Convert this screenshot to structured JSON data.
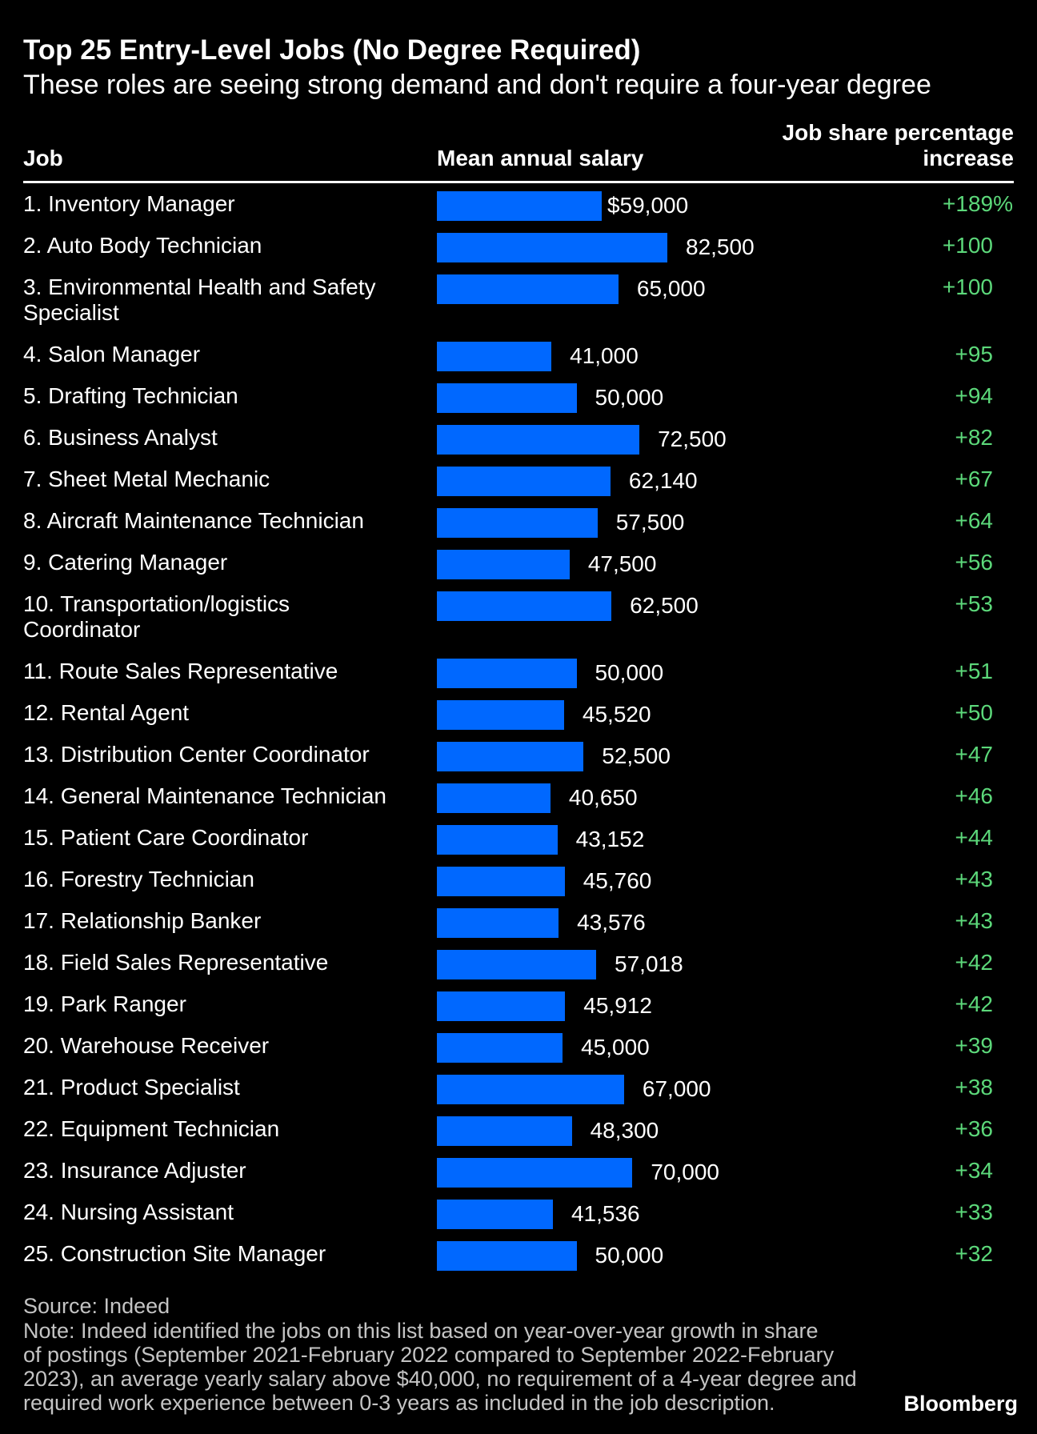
{
  "chart_data": {
    "type": "bar",
    "orientation": "horizontal",
    "grid": false,
    "title": "Top 25 Entry-Level Jobs (No Degree Required)",
    "subtitle": "These roles are seeing strong demand and don't require a four-year degree",
    "category_label": "Job",
    "categories": [
      "1. Inventory Manager",
      "2. Auto Body Technician",
      "3. Environmental Health and Safety\nSpecialist",
      "4. Salon Manager",
      "5. Drafting Technician",
      "6. Business Analyst",
      "7. Sheet Metal Mechanic",
      "8. Aircraft Maintenance Technician",
      "9. Catering Manager",
      "10. Transportation/logistics\nCoordinator",
      "11. Route Sales Representative",
      "12. Rental Agent",
      "13. Distribution Center Coordinator",
      "14. General Maintenance Technician",
      "15. Patient Care Coordinator",
      "16. Forestry Technician",
      "17. Relationship Banker",
      "18. Field Sales Representative",
      "19. Park Ranger",
      "20. Warehouse Receiver",
      "21. Product Specialist",
      "22. Equipment Technician",
      "23. Insurance Adjuster",
      "24. Nursing Assistant",
      "25. Construction Site Manager"
    ],
    "series": [
      {
        "name": "Mean annual salary",
        "values": [
          59000,
          82500,
          65000,
          41000,
          50000,
          72500,
          62140,
          57500,
          47500,
          62500,
          50000,
          45520,
          52500,
          40650,
          43152,
          45760,
          43576,
          57018,
          45912,
          45000,
          67000,
          48300,
          70000,
          41536,
          50000
        ],
        "labels": [
          "$59,000",
          "82,500",
          "65,000",
          "41,000",
          "50,000",
          "72,500",
          "62,140",
          "57,500",
          "47,500",
          "62,500",
          "50,000",
          "45,520",
          "52,500",
          "40,650",
          "43,152",
          "45,760",
          "43,576",
          "57,018",
          "45,912",
          "45,000",
          "67,000",
          "48,300",
          "70,000",
          "41,536",
          "50,000"
        ]
      },
      {
        "name": "Job share percentage increase",
        "values": [
          189,
          100,
          100,
          95,
          94,
          82,
          67,
          64,
          56,
          53,
          51,
          50,
          47,
          46,
          44,
          43,
          43,
          42,
          42,
          39,
          38,
          36,
          34,
          33,
          32
        ],
        "labels": [
          "+189%",
          "+100",
          "+100",
          "+95",
          "+94",
          "+82",
          "+67",
          "+64",
          "+56",
          "+53",
          "+51",
          "+50",
          "+47",
          "+46",
          "+44",
          "+43",
          "+43",
          "+42",
          "+42",
          "+39",
          "+38",
          "+36",
          "+34",
          "+33",
          "+32"
        ]
      }
    ]
  },
  "footer": {
    "source": "Source: Indeed",
    "note": "Note: Indeed identified the jobs on this list based on year-over-year growth in share\nof postings (September 2021-February 2022 compared to September 2022-February\n2023), an average yearly salary above $40,000, no requirement of a 4-year degree and\nrequired work experience between 0-3 years as included in the job description."
  },
  "brand": "Bloomberg",
  "colors": {
    "background": "#000000",
    "text": "#ffffff",
    "bar": "#0068ff",
    "increase_text": "#5cd87a",
    "footer_text": "#c4c4c4"
  }
}
